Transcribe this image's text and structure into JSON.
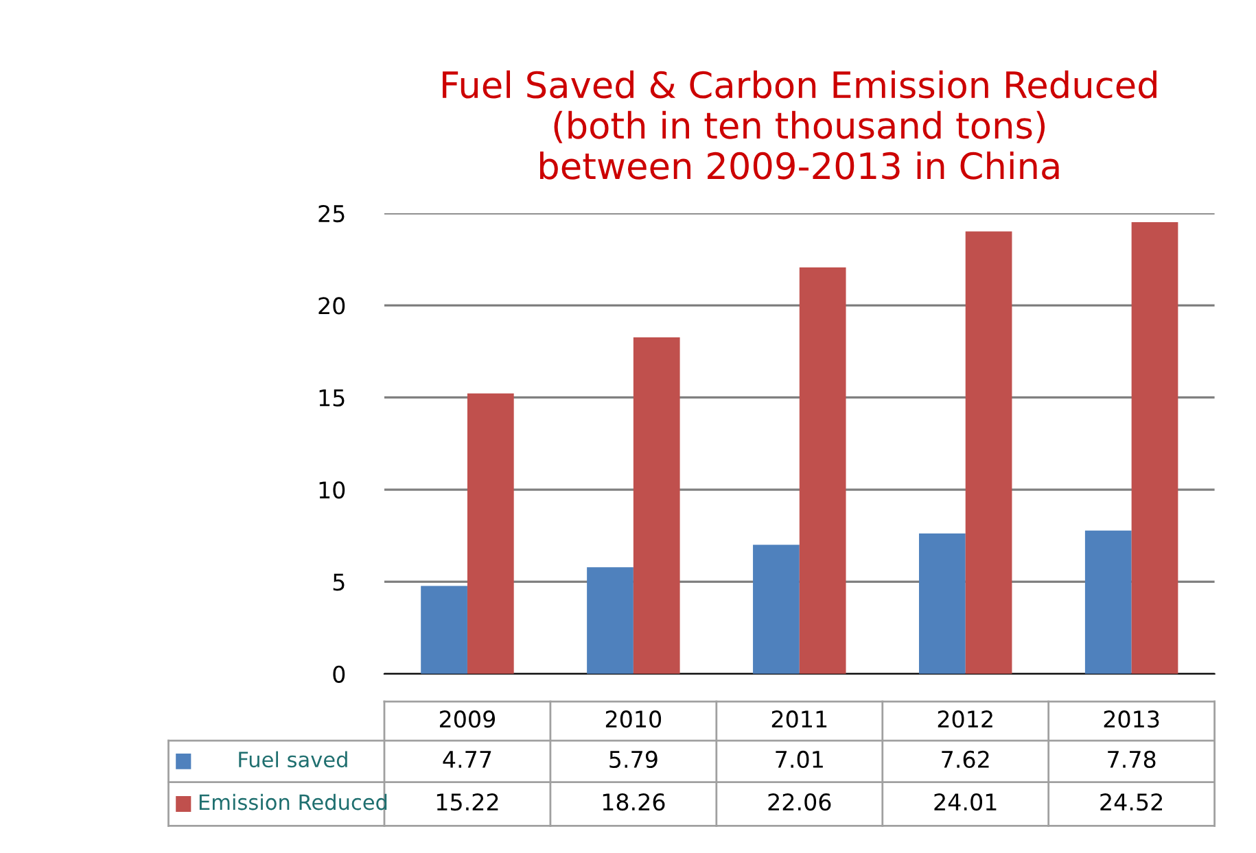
{
  "chart_data": {
    "type": "bar",
    "title": "Fuel Saved & Carbon Emission Reduced\n(both in ten thousand tons)\nbetween 2009-2013 in China",
    "categories": [
      "2009",
      "2010",
      "2011",
      "2012",
      "2013"
    ],
    "series": [
      {
        "name": "Fuel saved",
        "color": "#4f81bd",
        "values": [
          4.77,
          5.79,
          7.01,
          7.62,
          7.78
        ]
      },
      {
        "name": "Emission Reduced",
        "color": "#c0504d",
        "values": [
          15.22,
          18.26,
          22.06,
          24.01,
          24.52
        ]
      }
    ],
    "ylim": [
      0,
      25
    ],
    "yticks": [
      0,
      5,
      10,
      15,
      20,
      25
    ],
    "grid": "y",
    "data_labels": true,
    "legend": "bottom"
  }
}
